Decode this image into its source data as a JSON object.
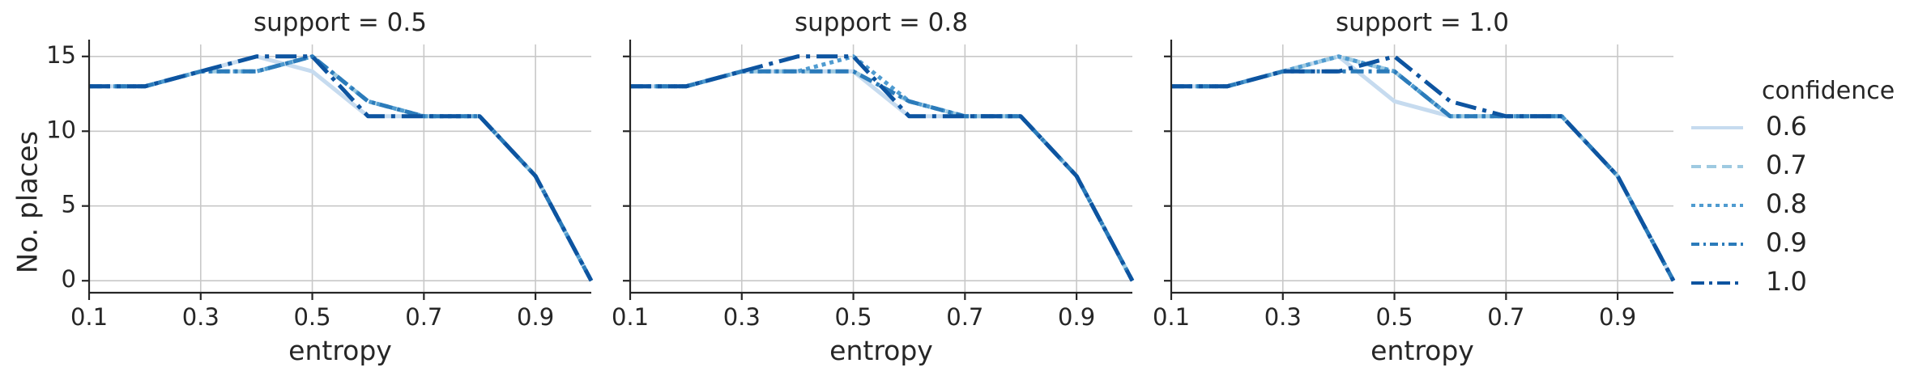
{
  "figure": {
    "ylabel": "No. places",
    "xlabel": "entropy",
    "legend": {
      "title": "confidence",
      "placement": "right",
      "entries": [
        "0.6",
        "0.7",
        "0.8",
        "0.9",
        "1.0"
      ]
    },
    "colors": {
      "0.6": "#c6dbef",
      "0.7": "#9ecae1",
      "0.8": "#4f9bd0",
      "0.9": "#2b7bba",
      "1.0": "#0d54a0",
      "grid": "#c8c8c8",
      "axis": "#262626"
    },
    "dash_styles": {
      "0.6": "solid",
      "0.7": "dashed",
      "0.8": "dotted",
      "0.9": "dashdot",
      "1.0": "long-dashdot"
    }
  },
  "chart_data": [
    {
      "type": "line",
      "title": "support = 0.5",
      "xlabel": "entropy",
      "ylabel": "No. places",
      "x": [
        0.1,
        0.2,
        0.3,
        0.4,
        0.5,
        0.6,
        0.7,
        0.8,
        0.9,
        1.0
      ],
      "xticks": [
        "0.1",
        "0.3",
        "0.5",
        "0.7",
        "0.9"
      ],
      "yticks": [
        "0",
        "5",
        "10",
        "15"
      ],
      "xlim": [
        0.1,
        1.0
      ],
      "ylim": [
        -0.8,
        15.8
      ],
      "grid": true,
      "series": [
        {
          "name": "0.6",
          "values": [
            13,
            13,
            14,
            15,
            14,
            11,
            11,
            11,
            7,
            0
          ]
        },
        {
          "name": "0.7",
          "values": [
            13,
            13,
            14,
            14,
            15,
            12,
            11,
            11,
            7,
            0
          ]
        },
        {
          "name": "0.8",
          "values": [
            13,
            13,
            14,
            14,
            15,
            12,
            11,
            11,
            7,
            0
          ]
        },
        {
          "name": "0.9",
          "values": [
            13,
            13,
            14,
            14,
            15,
            12,
            11,
            11,
            7,
            0
          ]
        },
        {
          "name": "1.0",
          "values": [
            13,
            13,
            14,
            15,
            15,
            11,
            11,
            11,
            7,
            0
          ]
        }
      ]
    },
    {
      "type": "line",
      "title": "support = 0.8",
      "xlabel": "entropy",
      "ylabel": "",
      "x": [
        0.1,
        0.2,
        0.3,
        0.4,
        0.5,
        0.6,
        0.7,
        0.8,
        0.9,
        1.0
      ],
      "xticks": [
        "0.1",
        "0.3",
        "0.5",
        "0.7",
        "0.9"
      ],
      "yticks": [
        "0",
        "5",
        "10",
        "15"
      ],
      "xlim": [
        0.1,
        1.0
      ],
      "ylim": [
        -0.8,
        15.8
      ],
      "grid": true,
      "series": [
        {
          "name": "0.6",
          "values": [
            13,
            13,
            14,
            14,
            14,
            11,
            11,
            11,
            7,
            0
          ]
        },
        {
          "name": "0.7",
          "values": [
            13,
            13,
            14,
            14,
            14,
            12,
            11,
            11,
            7,
            0
          ]
        },
        {
          "name": "0.8",
          "values": [
            13,
            13,
            14,
            14,
            15,
            12,
            11,
            11,
            7,
            0
          ]
        },
        {
          "name": "0.9",
          "values": [
            13,
            13,
            14,
            14,
            14,
            12,
            11,
            11,
            7,
            0
          ]
        },
        {
          "name": "1.0",
          "values": [
            13,
            13,
            14,
            15,
            15,
            11,
            11,
            11,
            7,
            0
          ]
        }
      ]
    },
    {
      "type": "line",
      "title": "support = 1.0",
      "xlabel": "entropy",
      "ylabel": "",
      "x": [
        0.1,
        0.2,
        0.3,
        0.4,
        0.5,
        0.6,
        0.7,
        0.8,
        0.9,
        1.0
      ],
      "xticks": [
        "0.1",
        "0.3",
        "0.5",
        "0.7",
        "0.9"
      ],
      "yticks": [
        "0",
        "5",
        "10",
        "15"
      ],
      "xlim": [
        0.1,
        1.0
      ],
      "ylim": [
        -0.8,
        15.8
      ],
      "grid": true,
      "series": [
        {
          "name": "0.6",
          "values": [
            13,
            13,
            14,
            15,
            12,
            11,
            11,
            11,
            7,
            0
          ]
        },
        {
          "name": "0.7",
          "values": [
            13,
            13,
            14,
            15,
            14,
            11,
            11,
            11,
            7,
            0
          ]
        },
        {
          "name": "0.8",
          "values": [
            13,
            13,
            14,
            15,
            14,
            11,
            11,
            11,
            7,
            0
          ]
        },
        {
          "name": "0.9",
          "values": [
            13,
            13,
            14,
            14,
            14,
            11,
            11,
            11,
            7,
            0
          ]
        },
        {
          "name": "1.0",
          "values": [
            13,
            13,
            14,
            14,
            15,
            12,
            11,
            11,
            7,
            0
          ]
        }
      ]
    }
  ]
}
